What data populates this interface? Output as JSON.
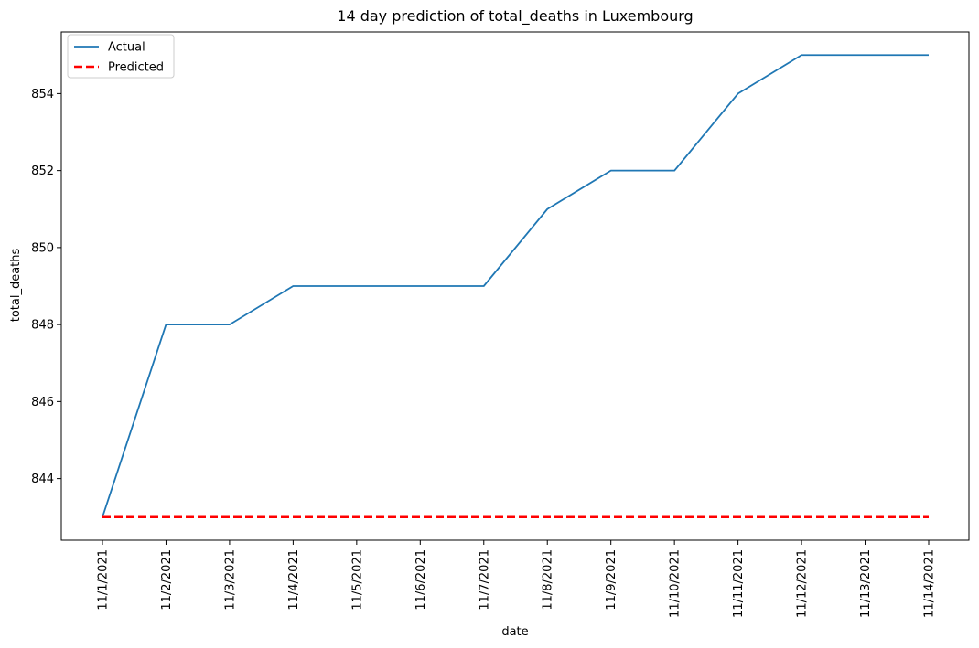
{
  "chart_data": {
    "type": "line",
    "title": "14 day prediction of total_deaths in Luxembourg",
    "xlabel": "date",
    "ylabel": "total_deaths",
    "x": [
      "11/1/2021",
      "11/2/2021",
      "11/3/2021",
      "11/4/2021",
      "11/5/2021",
      "11/6/2021",
      "11/7/2021",
      "11/8/2021",
      "11/9/2021",
      "11/10/2021",
      "11/11/2021",
      "11/12/2021",
      "11/13/2021",
      "11/14/2021"
    ],
    "series": [
      {
        "name": "Actual",
        "color": "#1f77b4",
        "style": "solid",
        "values": [
          843,
          848,
          848,
          849,
          849,
          849,
          849,
          851,
          852,
          852,
          854,
          855,
          855,
          855
        ]
      },
      {
        "name": "Predicted",
        "color": "#ff0000",
        "style": "dashed",
        "values": [
          843,
          843,
          843,
          843,
          843,
          843,
          843,
          843,
          843,
          843,
          843,
          843,
          843,
          843
        ]
      }
    ],
    "ylim": [
      842.4,
      855.6
    ],
    "yticks": [
      844,
      846,
      848,
      850,
      852,
      854
    ],
    "grid": false,
    "legend": "top-left"
  }
}
